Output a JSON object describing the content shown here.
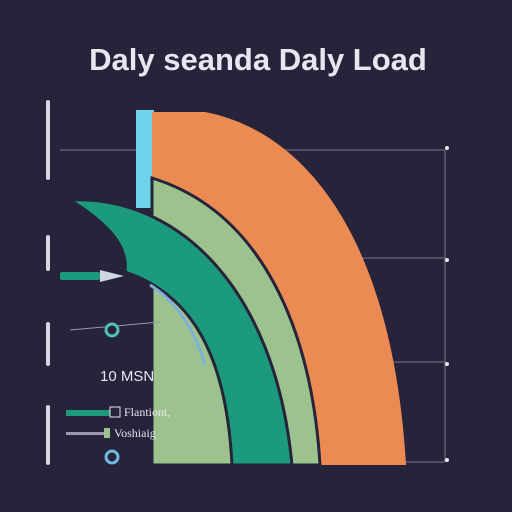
{
  "header": {
    "title": "Daly seanda Daly Load"
  },
  "annotation": "10 MSN",
  "legend": {
    "items": [
      "Flantiont,",
      "Voshiaig"
    ]
  }
}
